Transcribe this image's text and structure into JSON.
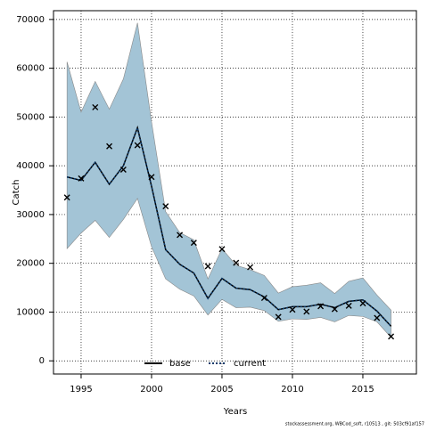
{
  "chart_data": {
    "type": "line",
    "x_label": "Years",
    "y_label": "Catch",
    "x": [
      1994,
      1995,
      1996,
      1997,
      1998,
      1999,
      2000,
      2001,
      2002,
      2003,
      2004,
      2005,
      2006,
      2007,
      2008,
      2009,
      2010,
      2011,
      2012,
      2013,
      2014,
      2015,
      2016,
      2017
    ],
    "band": {
      "color": "#a3c4d6",
      "upper": [
        61300,
        51000,
        57300,
        51600,
        57800,
        69300,
        49000,
        30600,
        26300,
        24800,
        16800,
        23000,
        19600,
        18700,
        17500,
        13900,
        15200,
        15500,
        16000,
        13800,
        16300,
        17000,
        13500,
        10400
      ],
      "lower": [
        23000,
        26200,
        28800,
        25300,
        29000,
        33300,
        23400,
        16800,
        14700,
        13300,
        9400,
        12600,
        10900,
        11000,
        10300,
        8100,
        8600,
        8500,
        8900,
        8000,
        9300,
        9100,
        8000,
        4800
      ]
    },
    "series": [
      {
        "name": "base",
        "color": "#000000",
        "dash": "solid",
        "values": [
          37700,
          37000,
          40700,
          36200,
          40000,
          47800,
          35800,
          22800,
          19800,
          18000,
          12800,
          16900,
          14900,
          14600,
          13100,
          10500,
          11100,
          11100,
          11600,
          10900,
          12200,
          12500,
          10200,
          7100
        ]
      },
      {
        "name": "current",
        "color": "#0b3a6b",
        "dash": "dotted",
        "values": [
          37700,
          37000,
          40700,
          36200,
          40000,
          47800,
          35800,
          22800,
          19800,
          18000,
          12800,
          16900,
          14900,
          14600,
          13100,
          10500,
          11100,
          11100,
          11600,
          10900,
          12200,
          12500,
          10200,
          7100
        ]
      }
    ],
    "observed": {
      "marker": "x",
      "color": "#000000",
      "values": [
        33500,
        37400,
        52000,
        44000,
        39200,
        44200,
        37700,
        31700,
        25800,
        24200,
        19400,
        22900,
        20100,
        19200,
        12900,
        9000,
        10500,
        10100,
        11200,
        10600,
        11300,
        11800,
        8800,
        5000
      ]
    },
    "xlim": [
      1993.04,
      2018.8
    ],
    "ylim": [
      -2700,
      71800
    ],
    "xticks": [
      1995,
      2000,
      2005,
      2010,
      2015
    ],
    "yticks": [
      0,
      10000,
      20000,
      30000,
      40000,
      50000,
      60000,
      70000
    ],
    "grid": true,
    "legend": "bottom"
  },
  "footer": "stockassessment.org, WBCod_soft, r10513 , git: 503cf91af157"
}
